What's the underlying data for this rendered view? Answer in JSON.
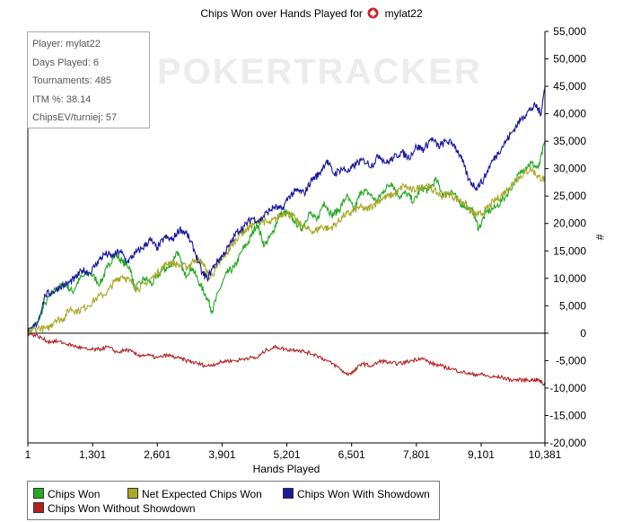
{
  "title": {
    "text": "Chips Won over Hands Played for",
    "player": "mylat22"
  },
  "watermark": "POKERTRACKER",
  "info_box": [
    "Player: mylat22",
    "Days Played: 6",
    "Tournaments: 485",
    "ITM %: 38.14",
    "ChipsEV/turniej: 57"
  ],
  "chart_data": {
    "type": "line",
    "title": "Chips Won over Hands Played for mylat22",
    "xlabel": "Hands Played",
    "ylabel": "#",
    "xlim": [
      1,
      10381
    ],
    "ylim": [
      -20000,
      55000
    ],
    "x_ticks": [
      1,
      1301,
      2601,
      3901,
      5201,
      6501,
      7801,
      9101,
      10381
    ],
    "x_tick_labels": [
      "1",
      "1,301",
      "2,601",
      "3,901",
      "5,201",
      "6,501",
      "7,801",
      "9,101",
      "10,381"
    ],
    "y_ticks": [
      -20000,
      -15000,
      -10000,
      -5000,
      0,
      5000,
      10000,
      15000,
      20000,
      25000,
      30000,
      35000,
      40000,
      45000,
      50000,
      55000
    ],
    "y_tick_labels": [
      "-20,000",
      "-15,000",
      "-10,000",
      "-5,000",
      "0",
      "5,000",
      "10,000",
      "15,000",
      "20,000",
      "25,000",
      "30,000",
      "35,000",
      "40,000",
      "45,000",
      "50,000",
      "55,000"
    ],
    "y_axis_side": "right",
    "legend_position": "bottom",
    "grid": false,
    "series": [
      {
        "name": "Chips Won",
        "color": "#22aa22",
        "points": [
          [
            1,
            0
          ],
          [
            200,
            2000
          ],
          [
            350,
            5500
          ],
          [
            550,
            8000
          ],
          [
            750,
            9000
          ],
          [
            900,
            7500
          ],
          [
            1050,
            10000
          ],
          [
            1250,
            11000
          ],
          [
            1450,
            9000
          ],
          [
            1600,
            12000
          ],
          [
            1750,
            14500
          ],
          [
            1900,
            13000
          ],
          [
            2050,
            12000
          ],
          [
            2150,
            8000
          ],
          [
            2350,
            10000
          ],
          [
            2500,
            9000
          ],
          [
            2700,
            11500
          ],
          [
            2850,
            12000
          ],
          [
            3000,
            15000
          ],
          [
            3150,
            10500
          ],
          [
            3300,
            12000
          ],
          [
            3450,
            9000
          ],
          [
            3600,
            6500
          ],
          [
            3700,
            4000
          ],
          [
            3850,
            8000
          ],
          [
            4000,
            11000
          ],
          [
            4150,
            12000
          ],
          [
            4300,
            15000
          ],
          [
            4450,
            17000
          ],
          [
            4600,
            20000
          ],
          [
            4750,
            16000
          ],
          [
            4900,
            18000
          ],
          [
            5050,
            21500
          ],
          [
            5200,
            22000
          ],
          [
            5350,
            20500
          ],
          [
            5500,
            19000
          ],
          [
            5650,
            22000
          ],
          [
            5800,
            20500
          ],
          [
            5950,
            24000
          ],
          [
            6100,
            21500
          ],
          [
            6250,
            22500
          ],
          [
            6400,
            25000
          ],
          [
            6550,
            22500
          ],
          [
            6700,
            26000
          ],
          [
            6850,
            25500
          ],
          [
            7000,
            24000
          ],
          [
            7150,
            26000
          ],
          [
            7300,
            27500
          ],
          [
            7450,
            25000
          ],
          [
            7600,
            25500
          ],
          [
            7750,
            24000
          ],
          [
            7900,
            26500
          ],
          [
            8050,
            26000
          ],
          [
            8200,
            28000
          ],
          [
            8350,
            25000
          ],
          [
            8500,
            26000
          ],
          [
            8650,
            24000
          ],
          [
            8800,
            23000
          ],
          [
            8950,
            22000
          ],
          [
            9050,
            19000
          ],
          [
            9200,
            22000
          ],
          [
            9400,
            23000
          ],
          [
            9600,
            25000
          ],
          [
            9800,
            28000
          ],
          [
            9950,
            30000
          ],
          [
            10100,
            31000
          ],
          [
            10250,
            30000
          ],
          [
            10381,
            35000
          ]
        ]
      },
      {
        "name": "Net Expected Chips Won",
        "color": "#a8a82a",
        "points": [
          [
            1,
            0
          ],
          [
            200,
            1000
          ],
          [
            400,
            700
          ],
          [
            550,
            2500
          ],
          [
            700,
            2500
          ],
          [
            850,
            4500
          ],
          [
            1000,
            4000
          ],
          [
            1200,
            5000
          ],
          [
            1400,
            6500
          ],
          [
            1600,
            7500
          ],
          [
            1750,
            9500
          ],
          [
            1900,
            10500
          ],
          [
            2050,
            9500
          ],
          [
            2200,
            8000
          ],
          [
            2350,
            9000
          ],
          [
            2550,
            10500
          ],
          [
            2700,
            12000
          ],
          [
            2850,
            13000
          ],
          [
            3000,
            12500
          ],
          [
            3200,
            12000
          ],
          [
            3350,
            13500
          ],
          [
            3500,
            13000
          ],
          [
            3650,
            10000
          ],
          [
            3800,
            12000
          ],
          [
            3950,
            14000
          ],
          [
            4100,
            16000
          ],
          [
            4250,
            18000
          ],
          [
            4400,
            19000
          ],
          [
            4550,
            20000
          ],
          [
            4700,
            20500
          ],
          [
            4850,
            20000
          ],
          [
            5000,
            21000
          ],
          [
            5150,
            22000
          ],
          [
            5300,
            21500
          ],
          [
            5450,
            20000
          ],
          [
            5600,
            19000
          ],
          [
            5750,
            18500
          ],
          [
            5900,
            19500
          ],
          [
            6050,
            19000
          ],
          [
            6200,
            20000
          ],
          [
            6350,
            21500
          ],
          [
            6500,
            22000
          ],
          [
            6650,
            23000
          ],
          [
            6800,
            22500
          ],
          [
            6950,
            23500
          ],
          [
            7100,
            24500
          ],
          [
            7250,
            25000
          ],
          [
            7400,
            25500
          ],
          [
            7550,
            27000
          ],
          [
            7700,
            26000
          ],
          [
            7850,
            26500
          ],
          [
            8000,
            27000
          ],
          [
            8150,
            26000
          ],
          [
            8300,
            25000
          ],
          [
            8450,
            25500
          ],
          [
            8600,
            24500
          ],
          [
            8750,
            24000
          ],
          [
            8900,
            22000
          ],
          [
            9050,
            21500
          ],
          [
            9200,
            22500
          ],
          [
            9350,
            24000
          ],
          [
            9500,
            25000
          ],
          [
            9650,
            26500
          ],
          [
            9800,
            28000
          ],
          [
            9950,
            29000
          ],
          [
            10100,
            30000
          ],
          [
            10250,
            28500
          ],
          [
            10381,
            28000
          ]
        ]
      },
      {
        "name": "Chips Won With Showdown",
        "color": "#1a1a9c",
        "points": [
          [
            1,
            0
          ],
          [
            200,
            2000
          ],
          [
            350,
            7000
          ],
          [
            500,
            7500
          ],
          [
            650,
            8500
          ],
          [
            800,
            9000
          ],
          [
            950,
            10000
          ],
          [
            1100,
            11500
          ],
          [
            1250,
            11000
          ],
          [
            1400,
            13000
          ],
          [
            1550,
            14500
          ],
          [
            1700,
            14000
          ],
          [
            1850,
            15000
          ],
          [
            2000,
            13000
          ],
          [
            2150,
            14500
          ],
          [
            2300,
            15500
          ],
          [
            2450,
            17000
          ],
          [
            2600,
            15500
          ],
          [
            2750,
            17500
          ],
          [
            2900,
            17000
          ],
          [
            3050,
            19000
          ],
          [
            3200,
            18000
          ],
          [
            3350,
            15000
          ],
          [
            3500,
            11000
          ],
          [
            3600,
            10000
          ],
          [
            3750,
            12500
          ],
          [
            3900,
            14000
          ],
          [
            4050,
            16000
          ],
          [
            4200,
            18500
          ],
          [
            4350,
            19500
          ],
          [
            4500,
            21000
          ],
          [
            4650,
            20500
          ],
          [
            4800,
            22000
          ],
          [
            4950,
            23000
          ],
          [
            5100,
            22500
          ],
          [
            5250,
            25000
          ],
          [
            5400,
            26000
          ],
          [
            5550,
            25500
          ],
          [
            5700,
            28000
          ],
          [
            5850,
            29000
          ],
          [
            6000,
            31500
          ],
          [
            6150,
            29000
          ],
          [
            6300,
            30000
          ],
          [
            6450,
            29500
          ],
          [
            6600,
            31000
          ],
          [
            6750,
            31500
          ],
          [
            6900,
            30500
          ],
          [
            7050,
            32500
          ],
          [
            7200,
            31000
          ],
          [
            7350,
            32000
          ],
          [
            7500,
            33000
          ],
          [
            7650,
            32000
          ],
          [
            7800,
            34000
          ],
          [
            7950,
            33500
          ],
          [
            8100,
            35500
          ],
          [
            8250,
            34000
          ],
          [
            8400,
            35000
          ],
          [
            8550,
            34500
          ],
          [
            8700,
            32000
          ],
          [
            8850,
            28000
          ],
          [
            9000,
            26500
          ],
          [
            9150,
            28000
          ],
          [
            9300,
            31000
          ],
          [
            9450,
            33000
          ],
          [
            9600,
            35000
          ],
          [
            9750,
            37000
          ],
          [
            9900,
            39000
          ],
          [
            10050,
            40500
          ],
          [
            10200,
            41500
          ],
          [
            10300,
            40000
          ],
          [
            10381,
            45000
          ]
        ]
      },
      {
        "name": "Chips Won Without Showdown",
        "color": "#b02020",
        "points": [
          [
            1,
            0
          ],
          [
            200,
            -500
          ],
          [
            400,
            -1500
          ],
          [
            600,
            -1500
          ],
          [
            800,
            -2000
          ],
          [
            1000,
            -2500
          ],
          [
            1200,
            -3000
          ],
          [
            1400,
            -3000
          ],
          [
            1600,
            -2500
          ],
          [
            1800,
            -3500
          ],
          [
            2000,
            -3000
          ],
          [
            2200,
            -4000
          ],
          [
            2400,
            -4000
          ],
          [
            2600,
            -4500
          ],
          [
            2800,
            -4000
          ],
          [
            3000,
            -4500
          ],
          [
            3200,
            -5000
          ],
          [
            3400,
            -5500
          ],
          [
            3600,
            -6000
          ],
          [
            3800,
            -5500
          ],
          [
            4000,
            -5000
          ],
          [
            4200,
            -5000
          ],
          [
            4400,
            -4500
          ],
          [
            4600,
            -4500
          ],
          [
            4800,
            -3000
          ],
          [
            5000,
            -2500
          ],
          [
            5200,
            -3000
          ],
          [
            5400,
            -3000
          ],
          [
            5600,
            -3500
          ],
          [
            5800,
            -4000
          ],
          [
            6000,
            -5000
          ],
          [
            6200,
            -6000
          ],
          [
            6400,
            -7500
          ],
          [
            6550,
            -7000
          ],
          [
            6700,
            -5500
          ],
          [
            6900,
            -6000
          ],
          [
            7100,
            -5000
          ],
          [
            7300,
            -5500
          ],
          [
            7500,
            -5500
          ],
          [
            7700,
            -5000
          ],
          [
            7900,
            -4500
          ],
          [
            8100,
            -5500
          ],
          [
            8300,
            -6000
          ],
          [
            8500,
            -6500
          ],
          [
            8700,
            -7000
          ],
          [
            8900,
            -7500
          ],
          [
            9100,
            -7500
          ],
          [
            9300,
            -8000
          ],
          [
            9500,
            -8000
          ],
          [
            9700,
            -8500
          ],
          [
            9900,
            -8500
          ],
          [
            10100,
            -8500
          ],
          [
            10250,
            -8500
          ],
          [
            10381,
            -9500
          ]
        ]
      }
    ]
  }
}
